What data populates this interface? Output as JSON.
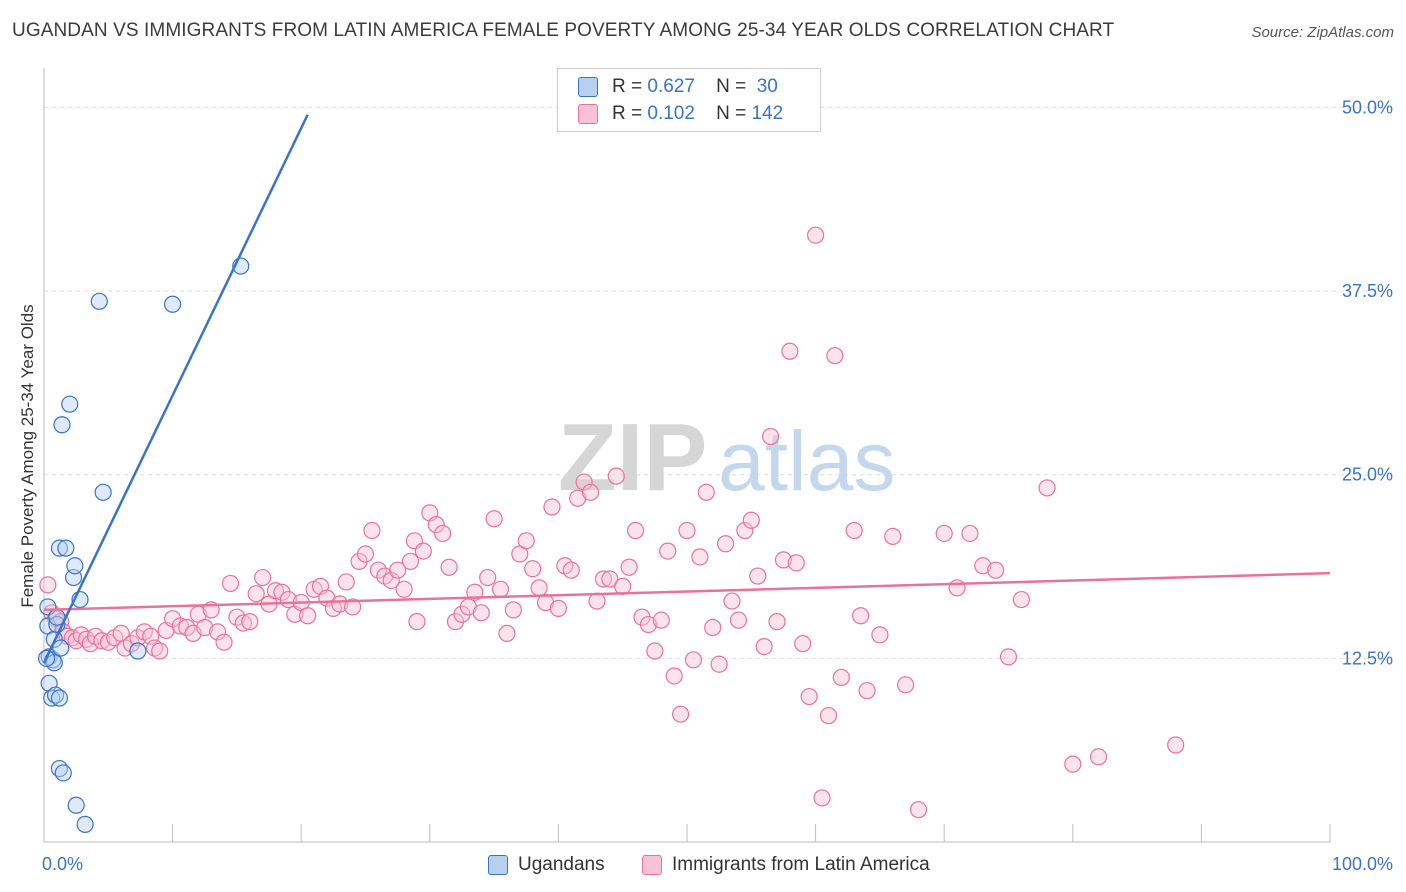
{
  "title": "UGANDAN VS IMMIGRANTS FROM LATIN AMERICA FEMALE POVERTY AMONG 25-34 YEAR OLDS CORRELATION CHART",
  "source": "Source: ZipAtlas.com",
  "watermark": {
    "zip": "ZIP",
    "atlas": "atlas"
  },
  "legend": {
    "r_label": "R =",
    "n_label": "N =",
    "series": [
      {
        "r": "0.627",
        "n": "30"
      },
      {
        "r": "0.102",
        "n": "142"
      }
    ]
  },
  "chart_data": {
    "type": "scatter",
    "title": "UGANDAN VS IMMIGRANTS FROM LATIN AMERICA FEMALE POVERTY AMONG 25-34 YEAR OLDS CORRELATION CHART",
    "xlabel": "",
    "ylabel": "Female Poverty Among 25-34 Year Olds",
    "xlim": [
      0,
      100
    ],
    "ylim": [
      0,
      52
    ],
    "x_tick_labels": [
      "0.0%",
      "100.0%"
    ],
    "y_ticks": [
      12.5,
      25.0,
      37.5,
      50.0
    ],
    "y_tick_labels": [
      "12.5%",
      "25.0%",
      "37.5%",
      "50.0%"
    ],
    "grid": "horizontal dashed",
    "legend_position": "top-center",
    "colors": {
      "ugandans": "#3a74c4",
      "ugandans_fill": "#b7cff0",
      "latin": "#e8739a",
      "latin_fill": "#f7c2d4",
      "tick_label": "#3a74c4"
    },
    "series": [
      {
        "name": "Ugandans",
        "r": 0.627,
        "n": 30,
        "trend": {
          "x": [
            0,
            20.5
          ],
          "y": [
            12.2,
            49.5
          ]
        },
        "points": [
          [
            0.3,
            16.0
          ],
          [
            0.3,
            14.7
          ],
          [
            0.4,
            12.6
          ],
          [
            0.4,
            10.8
          ],
          [
            0.6,
            9.8
          ],
          [
            0.7,
            12.4
          ],
          [
            0.8,
            12.2
          ],
          [
            0.8,
            13.8
          ],
          [
            0.9,
            10.0
          ],
          [
            1.0,
            14.8
          ],
          [
            1.0,
            15.3
          ],
          [
            1.2,
            5.0
          ],
          [
            1.2,
            20.0
          ],
          [
            1.2,
            9.8
          ],
          [
            1.3,
            13.2
          ],
          [
            1.4,
            28.4
          ],
          [
            1.5,
            4.7
          ],
          [
            1.7,
            20.0
          ],
          [
            2.0,
            29.8
          ],
          [
            2.3,
            18.0
          ],
          [
            2.4,
            18.8
          ],
          [
            2.5,
            2.5
          ],
          [
            2.8,
            16.5
          ],
          [
            3.2,
            1.2
          ],
          [
            4.3,
            36.8
          ],
          [
            4.6,
            23.8
          ],
          [
            7.3,
            13.0
          ],
          [
            10.0,
            36.6
          ],
          [
            15.3,
            39.2
          ],
          [
            0.2,
            12.5
          ]
        ]
      },
      {
        "name": "Immigrants from Latin America",
        "r": 0.102,
        "n": 142,
        "trend": {
          "x": [
            0,
            100
          ],
          "y": [
            15.8,
            18.3
          ]
        },
        "points": [
          [
            0.3,
            17.5
          ],
          [
            0.6,
            15.6
          ],
          [
            0.9,
            15.2
          ],
          [
            1.3,
            15.0
          ],
          [
            1.5,
            14.3
          ],
          [
            1.8,
            14.0
          ],
          [
            2.2,
            13.9
          ],
          [
            2.5,
            13.7
          ],
          [
            2.9,
            14.1
          ],
          [
            3.3,
            13.8
          ],
          [
            3.6,
            13.5
          ],
          [
            4.0,
            14.0
          ],
          [
            4.5,
            13.7
          ],
          [
            5.0,
            13.6
          ],
          [
            5.5,
            13.9
          ],
          [
            6.0,
            14.2
          ],
          [
            6.3,
            13.2
          ],
          [
            6.8,
            13.5
          ],
          [
            7.3,
            13.9
          ],
          [
            7.8,
            14.3
          ],
          [
            8.3,
            14.0
          ],
          [
            8.6,
            13.2
          ],
          [
            9.0,
            13.0
          ],
          [
            9.5,
            14.4
          ],
          [
            10.0,
            15.2
          ],
          [
            10.6,
            14.7
          ],
          [
            11.1,
            14.6
          ],
          [
            11.6,
            14.2
          ],
          [
            12.0,
            15.5
          ],
          [
            12.5,
            14.6
          ],
          [
            13.0,
            15.8
          ],
          [
            13.5,
            14.3
          ],
          [
            14.0,
            13.6
          ],
          [
            14.5,
            17.6
          ],
          [
            15.0,
            15.3
          ],
          [
            15.5,
            14.9
          ],
          [
            16.0,
            15.0
          ],
          [
            16.5,
            16.9
          ],
          [
            17.0,
            18.0
          ],
          [
            17.5,
            16.2
          ],
          [
            18.0,
            17.1
          ],
          [
            18.5,
            17.0
          ],
          [
            19.0,
            16.5
          ],
          [
            19.5,
            15.5
          ],
          [
            20.0,
            16.3
          ],
          [
            20.5,
            15.4
          ],
          [
            21.0,
            17.2
          ],
          [
            21.5,
            17.4
          ],
          [
            22.0,
            16.6
          ],
          [
            22.5,
            15.9
          ],
          [
            23.0,
            16.2
          ],
          [
            23.5,
            17.7
          ],
          [
            24.0,
            16.0
          ],
          [
            24.5,
            19.1
          ],
          [
            25.0,
            19.6
          ],
          [
            25.5,
            21.2
          ],
          [
            26.0,
            18.5
          ],
          [
            26.5,
            18.1
          ],
          [
            27.0,
            17.8
          ],
          [
            27.5,
            18.5
          ],
          [
            28.0,
            17.2
          ],
          [
            28.5,
            19.1
          ],
          [
            28.8,
            20.5
          ],
          [
            29.0,
            15.0
          ],
          [
            29.5,
            19.8
          ],
          [
            30.0,
            22.4
          ],
          [
            30.5,
            21.6
          ],
          [
            31.0,
            21.0
          ],
          [
            31.5,
            18.7
          ],
          [
            32.0,
            15.0
          ],
          [
            32.5,
            15.5
          ],
          [
            33.0,
            16.0
          ],
          [
            33.5,
            17.0
          ],
          [
            34.0,
            15.6
          ],
          [
            34.5,
            18.0
          ],
          [
            35.0,
            22.0
          ],
          [
            35.5,
            17.2
          ],
          [
            36.0,
            14.2
          ],
          [
            36.5,
            15.8
          ],
          [
            37.0,
            19.6
          ],
          [
            37.5,
            20.5
          ],
          [
            38.0,
            18.6
          ],
          [
            38.5,
            17.3
          ],
          [
            39.0,
            16.3
          ],
          [
            39.5,
            22.8
          ],
          [
            40.0,
            15.9
          ],
          [
            40.5,
            18.8
          ],
          [
            41.0,
            18.5
          ],
          [
            41.5,
            23.4
          ],
          [
            42.0,
            24.5
          ],
          [
            42.5,
            23.8
          ],
          [
            43.0,
            16.4
          ],
          [
            43.5,
            17.9
          ],
          [
            44.0,
            17.9
          ],
          [
            44.5,
            24.9
          ],
          [
            45.0,
            17.4
          ],
          [
            45.5,
            18.7
          ],
          [
            46.0,
            21.2
          ],
          [
            46.5,
            15.3
          ],
          [
            47.0,
            14.8
          ],
          [
            47.5,
            13.0
          ],
          [
            48.0,
            15.1
          ],
          [
            48.5,
            19.8
          ],
          [
            49.0,
            11.3
          ],
          [
            49.5,
            8.7
          ],
          [
            50.0,
            21.2
          ],
          [
            50.5,
            12.4
          ],
          [
            51.0,
            19.4
          ],
          [
            51.5,
            23.8
          ],
          [
            52.0,
            14.6
          ],
          [
            52.5,
            12.1
          ],
          [
            53.0,
            20.3
          ],
          [
            53.5,
            16.4
          ],
          [
            54.0,
            15.1
          ],
          [
            54.5,
            21.2
          ],
          [
            55.0,
            21.9
          ],
          [
            55.5,
            18.1
          ],
          [
            56.0,
            13.3
          ],
          [
            56.5,
            27.6
          ],
          [
            57.0,
            15.0
          ],
          [
            57.5,
            19.2
          ],
          [
            58.0,
            33.4
          ],
          [
            58.5,
            19.0
          ],
          [
            59.0,
            13.5
          ],
          [
            59.5,
            9.9
          ],
          [
            60.0,
            41.3
          ],
          [
            60.5,
            3.0
          ],
          [
            61.0,
            8.6
          ],
          [
            61.5,
            33.1
          ],
          [
            62.0,
            11.2
          ],
          [
            63.0,
            21.2
          ],
          [
            63.5,
            15.4
          ],
          [
            64.0,
            10.3
          ],
          [
            65.0,
            14.1
          ],
          [
            66.0,
            20.8
          ],
          [
            67.0,
            10.7
          ],
          [
            68.0,
            2.2
          ],
          [
            70.0,
            21.0
          ],
          [
            71.0,
            17.3
          ],
          [
            72.0,
            21.0
          ],
          [
            73.0,
            18.8
          ],
          [
            74.0,
            18.5
          ],
          [
            75.0,
            12.6
          ],
          [
            76.0,
            16.5
          ],
          [
            78.0,
            24.1
          ],
          [
            80.0,
            5.3
          ],
          [
            82.0,
            5.8
          ],
          [
            88.0,
            6.6
          ]
        ]
      }
    ]
  }
}
